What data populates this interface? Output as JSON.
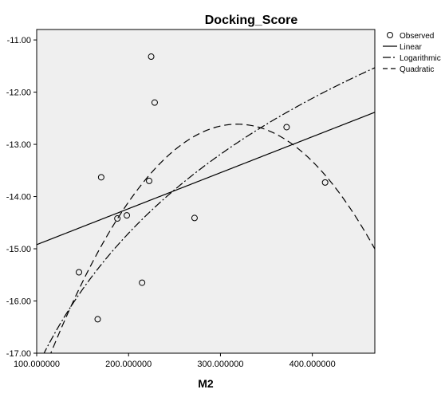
{
  "chart_data": {
    "type": "scatter",
    "title": "Docking_Score",
    "xlabel": "M2",
    "ylabel": "",
    "xlim": [
      100,
      468
    ],
    "ylim": [
      -17.0,
      -10.8
    ],
    "x_ticks": [
      100,
      200,
      300,
      400
    ],
    "x_tick_labels": [
      "100.000000",
      "200.000000",
      "300.000000",
      "400.000000"
    ],
    "y_ticks": [
      -11,
      -12,
      -13,
      -14,
      -15,
      -16,
      -17
    ],
    "y_tick_labels": [
      "-11.00",
      "-12.00",
      "-13.00",
      "-14.00",
      "-15.00",
      "-16.00",
      "-17.00"
    ],
    "grid": false,
    "legend_position": "right",
    "legend": [
      "Observed",
      "Linear",
      "Logarithmic",
      "Quadratic"
    ],
    "observed": [
      {
        "x": 224.6,
        "y": -11.32
      },
      {
        "x": 228.4,
        "y": -12.2
      },
      {
        "x": 372.0,
        "y": -12.67
      },
      {
        "x": 170.2,
        "y": -13.63
      },
      {
        "x": 222.4,
        "y": -13.7
      },
      {
        "x": 413.9,
        "y": -13.73
      },
      {
        "x": 198.1,
        "y": -14.36
      },
      {
        "x": 187.8,
        "y": -14.42
      },
      {
        "x": 271.8,
        "y": -14.41
      },
      {
        "x": 146.0,
        "y": -15.45
      },
      {
        "x": 214.7,
        "y": -15.65
      },
      {
        "x": 166.4,
        "y": -16.35
      }
    ],
    "fits": {
      "linear": {
        "intercept": -15.61,
        "slope": 0.00689
      },
      "logarithmic": {
        "a": -34.46,
        "b": 3.729
      },
      "quadratic": {
        "a": -23.41,
        "b": 0.06785,
        "c": -0.0001066
      }
    }
  }
}
